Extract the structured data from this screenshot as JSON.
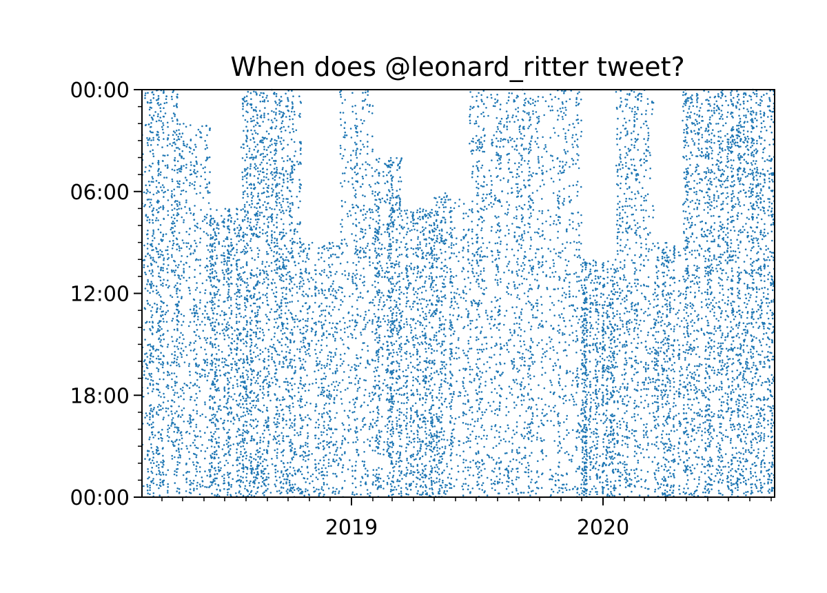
{
  "chart_data": {
    "type": "scatter",
    "title": "When does @leonard_ritter tweet?",
    "xlabel": "",
    "ylabel": "",
    "xlim": [
      "2018-03-03",
      "2020-09-06"
    ],
    "ylim_hours": [
      24,
      0
    ],
    "y_ticks": [
      {
        "hour": 0,
        "label": "00:00"
      },
      {
        "hour": 6,
        "label": "06:00"
      },
      {
        "hour": 12,
        "label": "12:00"
      },
      {
        "hour": 18,
        "label": "18:00"
      },
      {
        "hour": 24,
        "label": "00:00"
      }
    ],
    "x_ticks": [
      {
        "date": "2019-01-01",
        "label": "2019"
      },
      {
        "date": "2020-01-01",
        "label": "2020"
      }
    ],
    "x_minor_ticks": "monthly",
    "y_minor_ticks": "hourly",
    "grid": false,
    "marker_color": "#1f77b4",
    "series": [
      {
        "name": "",
        "encoding": "x = date of tweet, y = time of day (hours)",
        "activity_bands": [
          {
            "start": "2018-03-03",
            "end": "2018-04-25",
            "from_hour": 0,
            "to_hour": 24,
            "density": 0.85
          },
          {
            "start": "2018-04-25",
            "end": "2018-06-10",
            "from_hour": 2,
            "to_hour": 24,
            "density": 0.55
          },
          {
            "start": "2018-06-10",
            "end": "2018-07-25",
            "from_hour": 7,
            "to_hour": 24,
            "density": 0.75
          },
          {
            "start": "2018-07-25",
            "end": "2018-09-05",
            "from_hour": 0,
            "to_hour": 24,
            "density": 0.9
          },
          {
            "start": "2018-09-05",
            "end": "2018-10-20",
            "from_hour": 0,
            "to_hour": 24,
            "density": 0.8
          },
          {
            "start": "2018-10-20",
            "end": "2018-12-15",
            "from_hour": 9,
            "to_hour": 24,
            "density": 0.45
          },
          {
            "start": "2018-12-15",
            "end": "2019-02-01",
            "from_hour": 0,
            "to_hour": 24,
            "density": 0.55
          },
          {
            "start": "2019-02-01",
            "end": "2019-03-15",
            "from_hour": 4,
            "to_hour": 24,
            "density": 0.85
          },
          {
            "start": "2019-03-15",
            "end": "2019-05-01",
            "from_hour": 7,
            "to_hour": 24,
            "density": 0.75
          },
          {
            "start": "2019-05-01",
            "end": "2019-06-20",
            "from_hour": 6,
            "to_hour": 24,
            "density": 0.7
          },
          {
            "start": "2019-06-20",
            "end": "2019-08-15",
            "from_hour": 0,
            "to_hour": 24,
            "density": 0.55
          },
          {
            "start": "2019-08-15",
            "end": "2019-10-10",
            "from_hour": 0,
            "to_hour": 24,
            "density": 0.5
          },
          {
            "start": "2019-10-10",
            "end": "2019-12-01",
            "from_hour": 0,
            "to_hour": 24,
            "density": 0.45
          },
          {
            "start": "2019-12-01",
            "end": "2020-01-20",
            "from_hour": 10,
            "to_hour": 24,
            "density": 0.85
          },
          {
            "start": "2020-01-20",
            "end": "2020-03-15",
            "from_hour": 0,
            "to_hour": 24,
            "density": 0.65
          },
          {
            "start": "2020-03-15",
            "end": "2020-04-25",
            "from_hour": 9,
            "to_hour": 24,
            "density": 0.6
          },
          {
            "start": "2020-04-25",
            "end": "2020-06-10",
            "from_hour": 0,
            "to_hour": 24,
            "density": 0.75
          },
          {
            "start": "2020-06-10",
            "end": "2020-07-25",
            "from_hour": 0,
            "to_hour": 24,
            "density": 0.9
          },
          {
            "start": "2020-07-25",
            "end": "2020-09-06",
            "from_hour": 0,
            "to_hour": 24,
            "density": 0.8
          }
        ]
      }
    ]
  }
}
